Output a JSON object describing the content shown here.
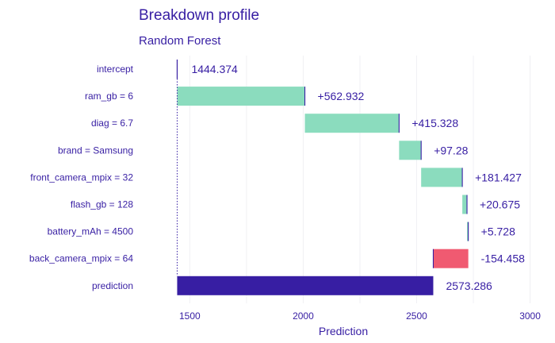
{
  "chart_data": {
    "type": "waterfall",
    "title": "Breakdown profile",
    "subtitle": "Random Forest",
    "xlabel": "Prediction",
    "xlim": [
      1310,
      3040
    ],
    "xticks": [
      1500,
      2000,
      2500,
      3000
    ],
    "colors": {
      "positive": "#8bdcbe",
      "negative": "#f05a71",
      "prediction": "#371ea3",
      "text": "#371ea3",
      "connector": "#371ea3"
    },
    "rows": [
      {
        "variable": "intercept",
        "contribution": 1444.374,
        "label": "1444.374",
        "kind": "intercept"
      },
      {
        "variable": "ram_gb = 6",
        "contribution": 562.932,
        "label": "+562.932",
        "kind": "positive"
      },
      {
        "variable": "diag = 6.7",
        "contribution": 415.328,
        "label": "+415.328",
        "kind": "positive"
      },
      {
        "variable": "brand = Samsung",
        "contribution": 97.28,
        "label": "+97.28",
        "kind": "positive"
      },
      {
        "variable": "front_camera_mpix = 32",
        "contribution": 181.427,
        "label": "+181.427",
        "kind": "positive"
      },
      {
        "variable": "flash_gb = 128",
        "contribution": 20.675,
        "label": "+20.675",
        "kind": "positive"
      },
      {
        "variable": "battery_mAh = 4500",
        "contribution": 5.728,
        "label": "+5.728",
        "kind": "positive"
      },
      {
        "variable": "back_camera_mpix = 64",
        "contribution": -154.458,
        "label": "-154.458",
        "kind": "negative"
      },
      {
        "variable": "prediction",
        "contribution": 2573.286,
        "label": "2573.286",
        "kind": "prediction"
      }
    ]
  }
}
